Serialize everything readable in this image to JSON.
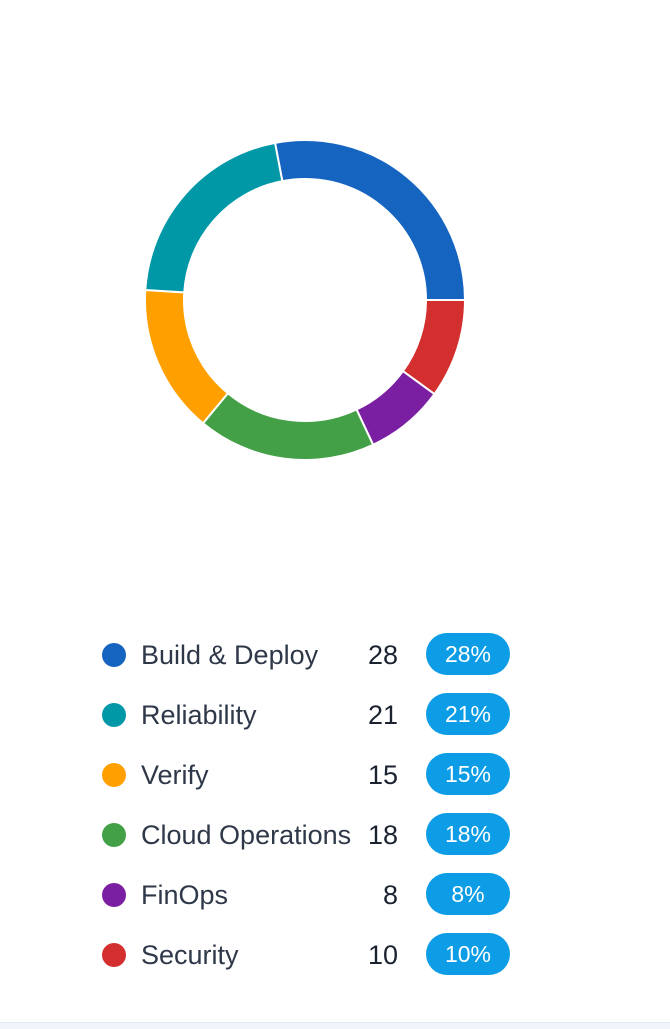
{
  "chart_data": {
    "type": "pie",
    "variant": "donut",
    "categories": [
      "Build & Deploy",
      "Reliability",
      "Verify",
      "Cloud Operations",
      "FinOps",
      "Security"
    ],
    "values": [
      28,
      21,
      15,
      18,
      8,
      10
    ],
    "percent_labels": [
      "28%",
      "21%",
      "15%",
      "18%",
      "8%",
      "10%"
    ],
    "colors": [
      "#1565c0",
      "#0097a7",
      "#ffa000",
      "#43a047",
      "#7b1fa2",
      "#d32f2f"
    ],
    "slice_order": [
      "Build & Deploy",
      "Security",
      "FinOps",
      "Cloud Operations",
      "Verify",
      "Reliability"
    ],
    "legend_position": "bottom"
  },
  "legend": {
    "items": [
      {
        "label": "Build & Deploy",
        "count": "28",
        "percent": "28%",
        "color": "#1565c0"
      },
      {
        "label": "Reliability",
        "count": "21",
        "percent": "21%",
        "color": "#0097a7"
      },
      {
        "label": "Verify",
        "count": "15",
        "percent": "15%",
        "color": "#ffa000"
      },
      {
        "label": "Cloud Operations",
        "count": "18",
        "percent": "18%",
        "color": "#43a047"
      },
      {
        "label": "FinOps",
        "count": "8",
        "percent": "8%",
        "color": "#7b1fa2"
      },
      {
        "label": "Security",
        "count": "10",
        "percent": "10%",
        "color": "#d32f2f"
      }
    ]
  },
  "theme": {
    "badge_color": "#0d9de6"
  }
}
